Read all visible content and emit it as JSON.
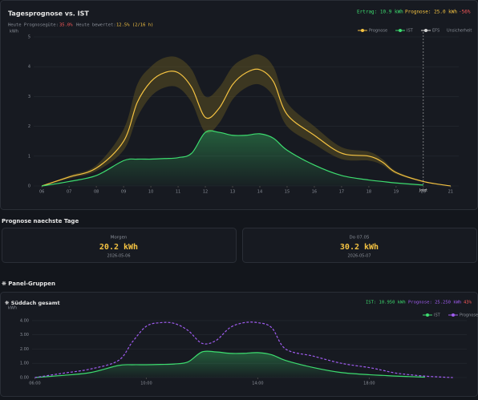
{
  "forecast": {
    "title": "Tagesprognose vs. IST",
    "ertrag": "Ertrag: 10.9 kWh",
    "prognose": "Prognose: 25.0 kWh",
    "delta": "-56%",
    "quality_label": "Heute Prognosegüte:",
    "quality_value": "35.0%",
    "rated_label": "Heute bewertet:",
    "rated_value": "12.5% (2/16 h)",
    "chart": {
      "type": "line",
      "y_label": "kWh",
      "x": [
        6,
        7,
        8,
        9,
        9.5,
        10,
        10.5,
        11,
        11.5,
        12,
        12.5,
        13,
        13.5,
        14,
        14.5,
        15,
        16,
        17,
        18,
        18.5,
        19,
        20,
        21
      ],
      "xlim": [
        5.7,
        21.3
      ],
      "ylim": [
        0,
        5
      ],
      "yticks": [
        0,
        1,
        2,
        3,
        4,
        5
      ],
      "xticks": [
        {
          "value": 6,
          "label": "06"
        },
        {
          "value": 7,
          "label": "07"
        },
        {
          "value": 8,
          "label": "08"
        },
        {
          "value": 9,
          "label": "09"
        },
        {
          "value": 10,
          "label": "10"
        },
        {
          "value": 11,
          "label": "11"
        },
        {
          "value": 12,
          "label": "12"
        },
        {
          "value": 13,
          "label": "13"
        },
        {
          "value": 14,
          "label": "14"
        },
        {
          "value": 15,
          "label": "15"
        },
        {
          "value": 16,
          "label": "16"
        },
        {
          "value": 17,
          "label": "17"
        },
        {
          "value": 18,
          "label": "18"
        },
        {
          "value": 19,
          "label": "19"
        },
        {
          "value": 20,
          "label": "20"
        },
        {
          "value": 21,
          "label": "21"
        }
      ],
      "band": {
        "name": "Unsicherheit",
        "color": "#6b5a22",
        "upper": [
          0,
          0.35,
          0.7,
          1.9,
          3.4,
          4.0,
          4.3,
          4.3,
          3.9,
          3.0,
          3.3,
          4.0,
          4.3,
          4.4,
          4.0,
          2.8,
          2.0,
          1.3,
          1.15,
          0.9,
          0.5,
          0.17,
          0
        ],
        "lower": [
          0,
          0.25,
          0.5,
          1.2,
          2.3,
          3.0,
          3.3,
          3.3,
          2.8,
          1.8,
          2.1,
          2.9,
          3.3,
          3.4,
          3.0,
          2.0,
          1.4,
          0.9,
          0.85,
          0.7,
          0.4,
          0.13,
          0
        ]
      },
      "series": [
        {
          "name": "Prognose",
          "color": "#f5c342",
          "values": [
            0,
            0.3,
            0.6,
            1.5,
            2.8,
            3.5,
            3.8,
            3.8,
            3.3,
            2.3,
            2.6,
            3.4,
            3.8,
            3.9,
            3.5,
            2.4,
            1.7,
            1.1,
            1.0,
            0.8,
            0.45,
            0.15,
            0
          ]
        },
        {
          "name": "IST",
          "color": "#3ddc6f",
          "fill": true,
          "values": [
            0,
            0.15,
            0.35,
            0.85,
            0.9,
            0.9,
            0.92,
            0.95,
            1.1,
            1.8,
            1.8,
            1.7,
            1.7,
            1.75,
            1.6,
            1.2,
            0.7,
            0.35,
            0.2,
            0.15,
            0.1,
            0.03,
            null
          ]
        },
        {
          "name": "EFS",
          "color": "#d8d8d8",
          "values": [
            null,
            null,
            null,
            null,
            null,
            null,
            null,
            null,
            null,
            null,
            null,
            null,
            null,
            null,
            null,
            null,
            null,
            null,
            null,
            null,
            null,
            null,
            null
          ]
        }
      ],
      "now": {
        "x": 20,
        "label": "Jetzt"
      }
    }
  },
  "next_days": {
    "title": "Prognose naechste Tage",
    "cards": [
      {
        "label": "Morgen",
        "value": "20.2 kWh",
        "date": "2026-05-06"
      },
      {
        "label": "Do 07.05",
        "value": "30.2 kWh",
        "date": "2026-05-07"
      }
    ]
  },
  "panel_groups": {
    "title": "❋ Panel-Gruppen",
    "groups": [
      {
        "title": "❋ Süddach gesamt",
        "ist": "IST: 10.950 kWh",
        "prognose": "Prognose: 25.250 kWh",
        "ratio": "43%",
        "chart": {
          "type": "line",
          "y_label": "kWh",
          "x": [
            6,
            7,
            8,
            9,
            9.5,
            10,
            10.5,
            11,
            11.5,
            12,
            12.5,
            13,
            13.5,
            14,
            14.5,
            15,
            16,
            17,
            18,
            18.5,
            19,
            20,
            21
          ],
          "xlim": [
            5.9,
            21.5
          ],
          "ylim": [
            0,
            4.5
          ],
          "yticks": [
            {
              "value": 0,
              "label": "0.00"
            },
            {
              "value": 1,
              "label": "1.00"
            },
            {
              "value": 2,
              "label": "2.00"
            },
            {
              "value": 3,
              "label": "3.00"
            },
            {
              "value": 4,
              "label": "4.00"
            }
          ],
          "xticks": [
            {
              "value": 6,
              "label": "06:00"
            },
            {
              "value": 10,
              "label": "10:00"
            },
            {
              "value": 14,
              "label": "14:00"
            },
            {
              "value": 18,
              "label": "18:00"
            }
          ],
          "series": [
            {
              "name": "IST",
              "color": "#3ddc6f",
              "fill": true,
              "values": [
                0,
                0.15,
                0.35,
                0.85,
                0.9,
                0.9,
                0.92,
                0.95,
                1.1,
                1.8,
                1.8,
                1.7,
                1.7,
                1.75,
                1.6,
                1.2,
                0.7,
                0.35,
                0.2,
                0.15,
                0.1,
                0.03,
                null
              ]
            },
            {
              "name": "Prognose",
              "color": "#a05cf0",
              "dash": true,
              "values": [
                0,
                0.3,
                0.6,
                1.2,
                2.5,
                3.6,
                3.85,
                3.8,
                3.3,
                2.4,
                2.6,
                3.5,
                3.85,
                3.85,
                3.5,
                2.0,
                1.5,
                1.0,
                0.7,
                0.5,
                0.3,
                0.1,
                0
              ]
            }
          ]
        }
      }
    ]
  }
}
